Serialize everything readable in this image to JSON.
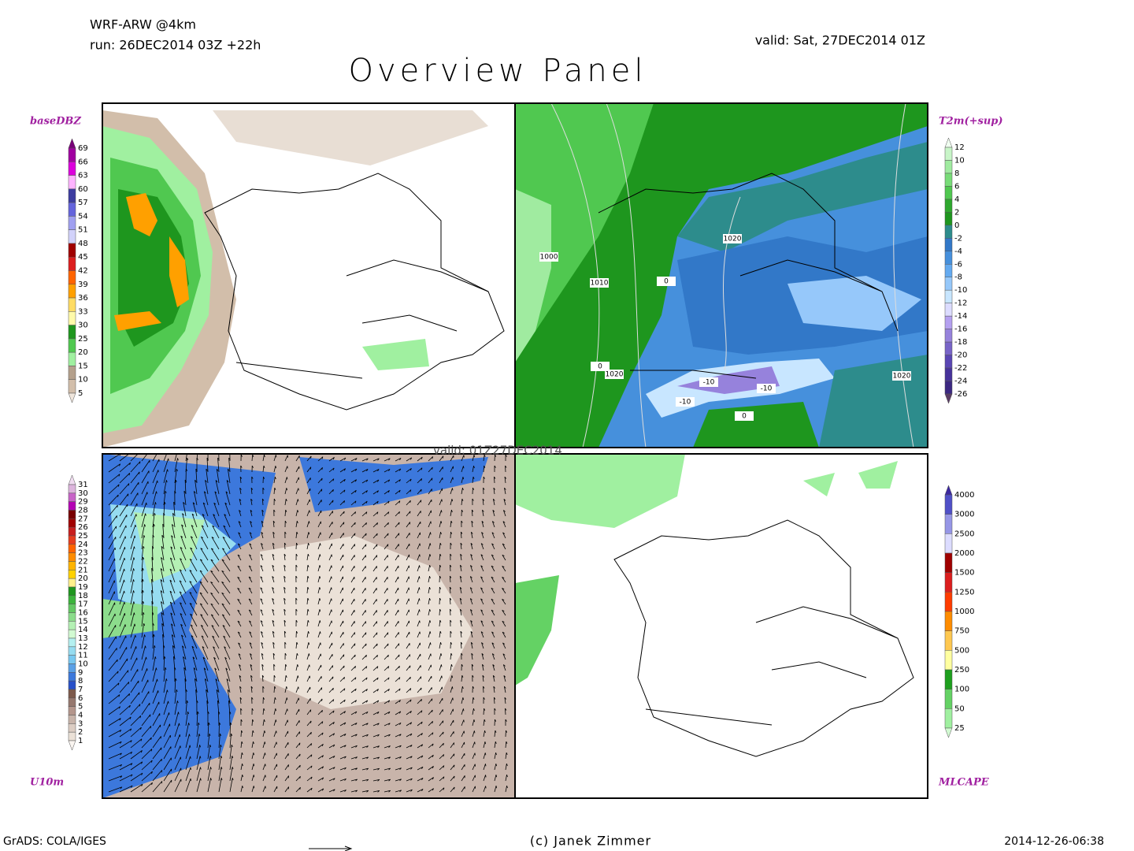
{
  "header": {
    "model": "WRF-ARW @4km",
    "run": "run: 26DEC2014 03Z +22h",
    "valid": "valid: Sat, 27DEC2014 01Z",
    "title": "Overview Panel",
    "overlay_text": "valid: 01Z27DEC2014"
  },
  "panels": [
    {
      "label": "baseDBZ",
      "colorbar": {
        "labels": [
          "69",
          "66",
          "63",
          "60",
          "57",
          "54",
          "51",
          "48",
          "45",
          "42",
          "39",
          "36",
          "33",
          "30",
          "25",
          "20",
          "15",
          "10",
          "5"
        ],
        "colors": [
          "#780078",
          "#a000a0",
          "#dc00dc",
          "#ffb4ff",
          "#3c3ca0",
          "#6464dc",
          "#a0a0f0",
          "#d2d2fa",
          "#a00000",
          "#dc1e1e",
          "#ff6400",
          "#ffa000",
          "#ffdc64",
          "#fffaaa",
          "#1e961e",
          "#50c850",
          "#a0f0a0",
          "#b4a08c",
          "#d2beaa",
          "#f0e6dc"
        ]
      }
    },
    {
      "label": "T2m(+sup)",
      "colorbar": {
        "labels": [
          "12",
          "10",
          "8",
          "6",
          "4",
          "2",
          "0",
          "-2",
          "-4",
          "-6",
          "-8",
          "-10",
          "-12",
          "-14",
          "-16",
          "-18",
          "-20",
          "-22",
          "-24",
          "-26"
        ],
        "colors": [
          "#f0fff0",
          "#c8f5c8",
          "#a0eba0",
          "#78dc78",
          "#50c850",
          "#2ea82e",
          "#1e961e",
          "#2d8c8c",
          "#3278c8",
          "#4690dc",
          "#64aaf0",
          "#96c8fa",
          "#c8e6ff",
          "#dcdcff",
          "#b4a0f0",
          "#9682dc",
          "#7864c8",
          "#5a46b4",
          "#46329b",
          "#3c2882",
          "#5a3c64"
        ]
      },
      "contour_labels": [
        "1000",
        "1010",
        "1020",
        "1020",
        "1020",
        "0",
        "0",
        "0",
        "-10",
        "-10",
        "-10"
      ]
    },
    {
      "label": "U10m",
      "colorbar": {
        "labels": [
          "31",
          "30",
          "29",
          "28",
          "27",
          "26",
          "25",
          "24",
          "23",
          "22",
          "21",
          "20",
          "19",
          "18",
          "17",
          "16",
          "15",
          "14",
          "13",
          "12",
          "11",
          "10",
          "9",
          "8",
          "7",
          "6",
          "5",
          "4",
          "3",
          "2",
          "1"
        ],
        "colors": [
          "#f0dcf0",
          "#dcb4dc",
          "#c864c8",
          "#b400b4",
          "#780000",
          "#a00000",
          "#c81e1e",
          "#e63c1e",
          "#ff6400",
          "#ff8c00",
          "#ffb400",
          "#ffd200",
          "#fff08c",
          "#1e961e",
          "#3cb43c",
          "#64c864",
          "#8cdc8c",
          "#b4f0b4",
          "#d2fad2",
          "#b4f0f0",
          "#96dcf0",
          "#78c8f0",
          "#5aa0e6",
          "#3c78dc",
          "#2850c8",
          "#7d5a4b",
          "#96786e",
          "#b4968c",
          "#c8b4aa",
          "#dccdc3",
          "#ebe1d7",
          "#faf5f0"
        ]
      }
    },
    {
      "label": "MLCAPE",
      "colorbar": {
        "labels": [
          "4000",
          "3000",
          "2500",
          "2000",
          "1500",
          "1250",
          "1000",
          "750",
          "500",
          "250",
          "100",
          "50",
          "25"
        ],
        "colors": [
          "#3c28a0",
          "#5050c8",
          "#9696e6",
          "#dcdcff",
          "#a00000",
          "#dc1e1e",
          "#ff3c00",
          "#ff8c00",
          "#ffc850",
          "#ffffa0",
          "#1ea01e",
          "#64d264",
          "#a0f0a0",
          "#d2fad2"
        ]
      }
    }
  ],
  "footer": {
    "left": "GrADS: COLA/IGES",
    "center": "(c) Janek Zimmer",
    "right": "2014-12-26-06:38"
  }
}
